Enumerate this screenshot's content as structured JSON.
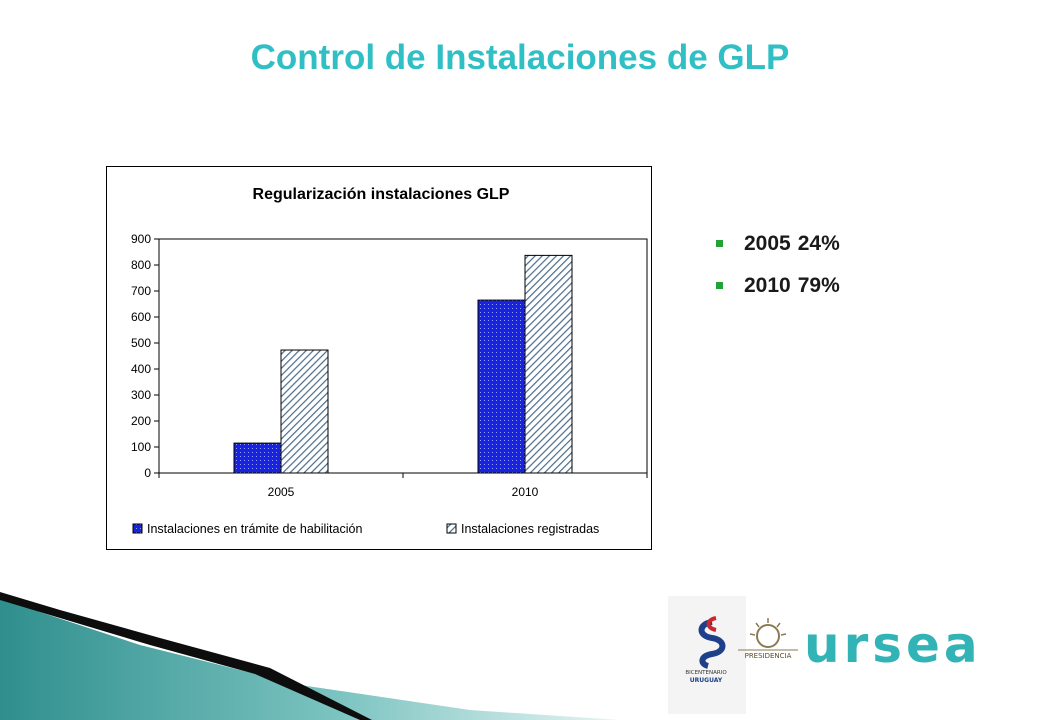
{
  "slide": {
    "title": "Control de Instalaciones de GLP"
  },
  "bullets": [
    {
      "label": "2005",
      "value": "24%"
    },
    {
      "label": "2010",
      "value": "79%"
    }
  ],
  "colors": {
    "title": "#2fbfc4",
    "bullet": "#22a33a",
    "series_1": "#1a22e0",
    "series_2_hatch": "#4b6b8a",
    "teal_deco": "#3a9a98"
  },
  "logos": {
    "bicentenario_line1": "BICENTENARIO",
    "bicentenario_line2": "URUGUAY",
    "presidencia": "PRESIDENCIA",
    "ursea": "ursea"
  },
  "chart_data": {
    "type": "bar",
    "title": "Regularización instalaciones GLP",
    "categories": [
      "2005",
      "2010"
    ],
    "series": [
      {
        "name": "Instalaciones en trámite de habilitación",
        "values": [
          115,
          665
        ],
        "color": "#1a22e0",
        "pattern": "dotted"
      },
      {
        "name": "Instalaciones registradas",
        "values": [
          473,
          837
        ],
        "color": "#ffffff",
        "pattern": "diagonal-hatch"
      }
    ],
    "ylim": [
      0,
      900
    ],
    "yticks": [
      0,
      100,
      200,
      300,
      400,
      500,
      600,
      700,
      800,
      900
    ],
    "xlabel": "",
    "ylabel": "",
    "grid": false,
    "legend": "bottom"
  }
}
